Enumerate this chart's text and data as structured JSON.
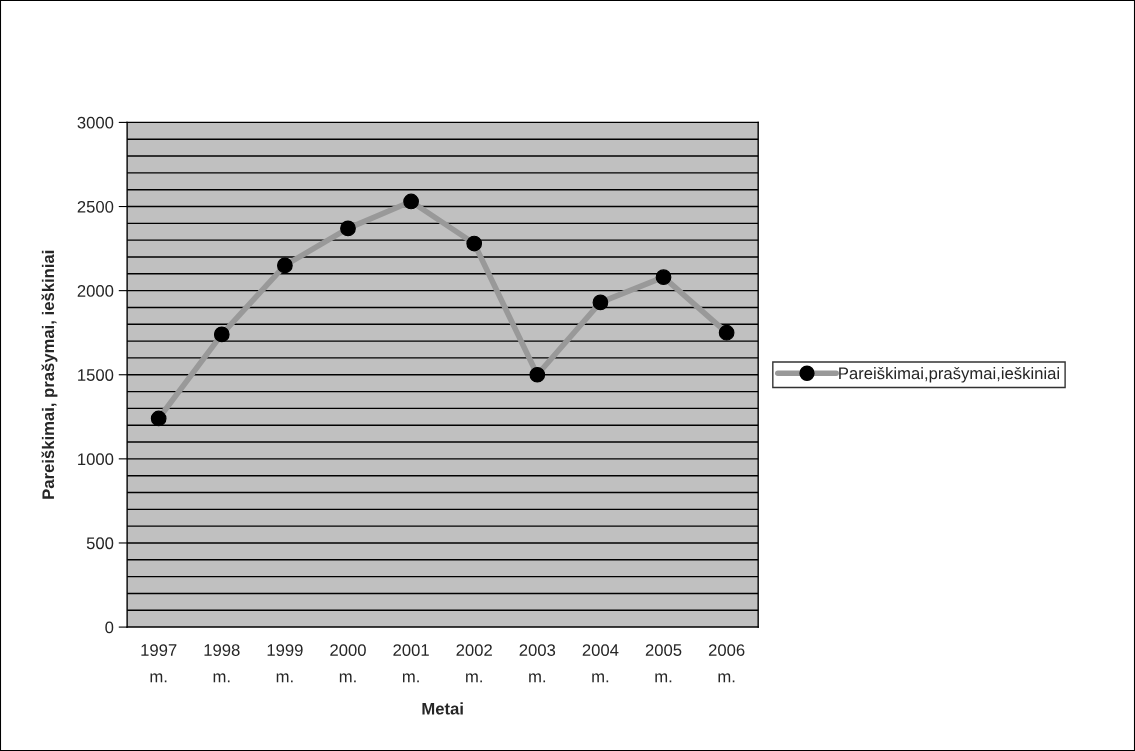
{
  "chart_data": {
    "type": "line",
    "xlabel": "Metai",
    "ylabel": "Pareiškimai, prašymai, ieškiniai",
    "categories": [
      "1997 m.",
      "1998 m.",
      "1999 m.",
      "2000 m.",
      "2001 m.",
      "2002 m.",
      "2003 m.",
      "2004 m.",
      "2005 m.",
      "2006 m."
    ],
    "series": [
      {
        "name": "Pareiškimai,prašymai,ieškiniai",
        "color": "#999999",
        "values": [
          1240,
          1740,
          2150,
          2370,
          2530,
          2280,
          1500,
          1930,
          2080,
          1750
        ]
      }
    ],
    "ylim": [
      0,
      3000
    ],
    "yticks": [
      0,
      500,
      1000,
      1500,
      2000,
      2500,
      3000
    ],
    "grid": "y",
    "legend": "right",
    "marker": "circle",
    "line_style": "solid"
  }
}
